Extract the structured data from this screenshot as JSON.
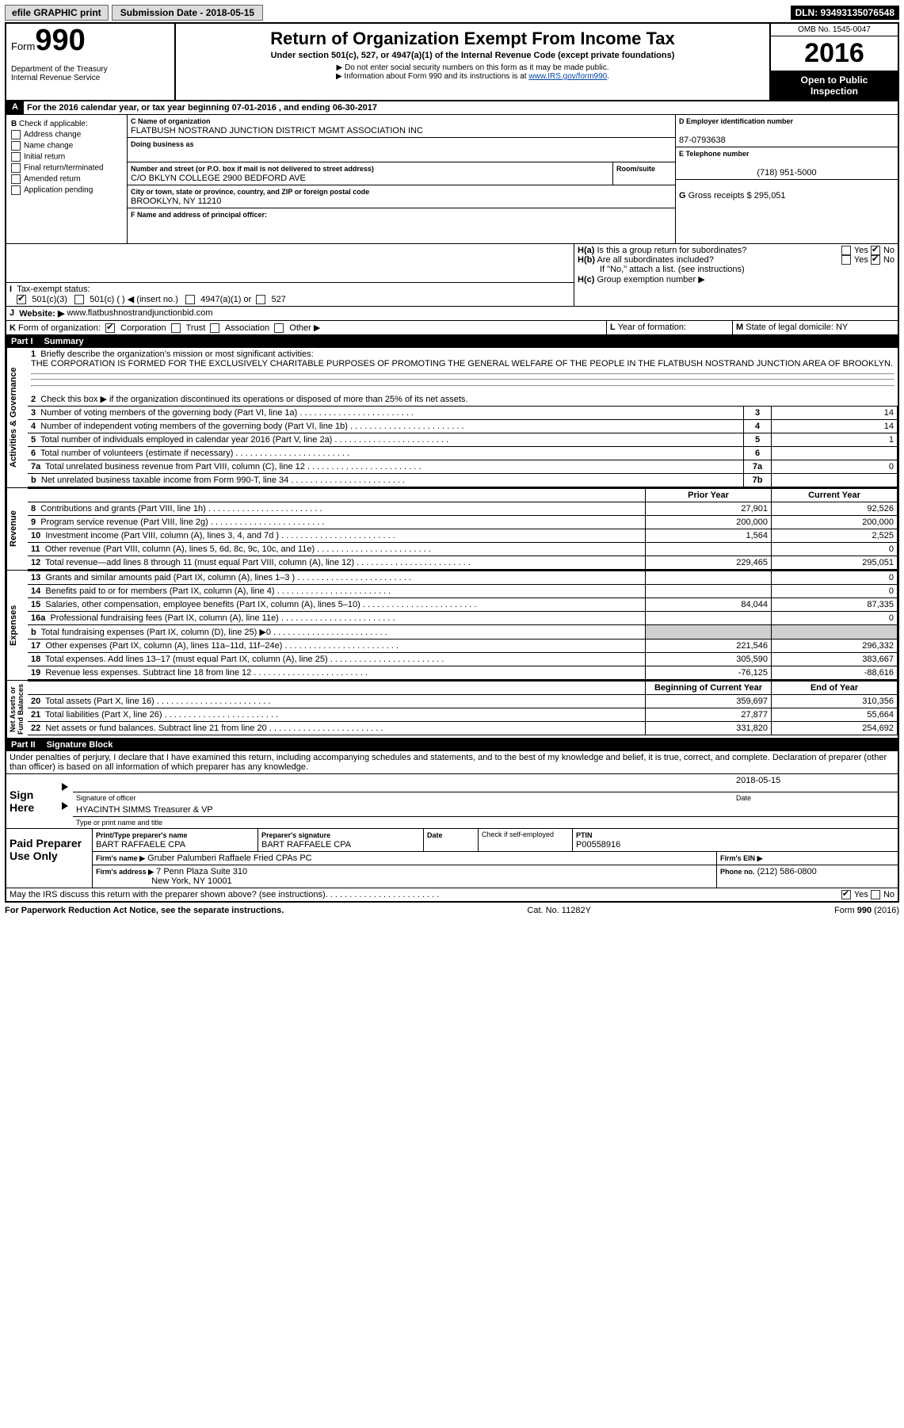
{
  "topbar": {
    "efile": "efile GRAPHIC print",
    "submission": "Submission Date - 2018-05-15",
    "dln": "DLN: 93493135076548"
  },
  "header": {
    "form_word": "Form",
    "form_num": "990",
    "dept1": "Department of the Treasury",
    "dept2": "Internal Revenue Service",
    "title": "Return of Organization Exempt From Income Tax",
    "subtitle": "Under section 501(c), 527, or 4947(a)(1) of the Internal Revenue Code (except private foundations)",
    "note1": "▶ Do not enter social security numbers on this form as it may be made public.",
    "note2_a": "▶ Information about Form 990 and its instructions is at ",
    "note2_link": "www.IRS.gov/form990",
    "omb": "OMB No. 1545-0047",
    "year": "2016",
    "open1": "Open to Public",
    "open2": "Inspection"
  },
  "line_a": "For the 2016 calendar year, or tax year beginning 07-01-2016   , and ending 06-30-2017",
  "b": {
    "label": "Check if applicable:",
    "opts": [
      "Address change",
      "Name change",
      "Initial return",
      "Final return/terminated",
      "Amended return",
      "Application pending"
    ]
  },
  "c": {
    "name_label": "Name of organization",
    "name": "FLATBUSH NOSTRAND JUNCTION DISTRICT MGMT ASSOCIATION INC",
    "dba_label": "Doing business as",
    "addr_label": "Number and street (or P.O. box if mail is not delivered to street address)",
    "room_label": "Room/suite",
    "addr": "C/O BKLYN COLLEGE 2900 BEDFORD AVE",
    "city_label": "City or town, state or province, country, and ZIP or foreign postal code",
    "city": "BROOKLYN, NY  11210",
    "f_label": "Name and address of principal officer:"
  },
  "d": {
    "label": "Employer identification number",
    "val": "87-0793638"
  },
  "e": {
    "label": "Telephone number",
    "val": "(718) 951-5000"
  },
  "g": {
    "label": "Gross receipts $",
    "val": "295,051"
  },
  "h": {
    "a": "Is this a group return for subordinates?",
    "b": "Are all subordinates included?",
    "b_note": "If \"No,\" attach a list. (see instructions)",
    "c": "Group exemption number ▶",
    "yes": "Yes",
    "no": "No"
  },
  "i": {
    "label": "Tax-exempt status:",
    "o1": "501(c)(3)",
    "o2": "501(c) (   ) ◀ (insert no.)",
    "o3": "4947(a)(1) or",
    "o4": "527"
  },
  "j": {
    "label": "Website: ▶",
    "val": "www.flatbushnostrandjunctionbid.com"
  },
  "k": {
    "label": "Form of organization:",
    "opts": [
      "Corporation",
      "Trust",
      "Association",
      "Other ▶"
    ]
  },
  "l": {
    "label": "Year of formation:"
  },
  "m": {
    "label": "State of legal domicile:",
    "val": "NY"
  },
  "part1": {
    "title": "Part I",
    "name": "Summary",
    "l1": "Briefly describe the organization's mission or most significant activities:",
    "mission": "THE CORPORATION IS FORMED FOR THE EXCLUSIVELY CHARITABLE PURPOSES OF PROMOTING THE GENERAL WELFARE OF THE PEOPLE IN THE FLATBUSH NOSTRAND JUNCTION AREA OF BROOKLYN.",
    "l2": "Check this box ▶        if the organization discontinued its operations or disposed of more than 25% of its net assets.",
    "lines_gov": [
      {
        "n": "3",
        "t": "Number of voting members of the governing body (Part VI, line 1a)",
        "box": "3",
        "v": "14"
      },
      {
        "n": "4",
        "t": "Number of independent voting members of the governing body (Part VI, line 1b)",
        "box": "4",
        "v": "14"
      },
      {
        "n": "5",
        "t": "Total number of individuals employed in calendar year 2016 (Part V, line 2a)",
        "box": "5",
        "v": "1"
      },
      {
        "n": "6",
        "t": "Total number of volunteers (estimate if necessary)",
        "box": "6",
        "v": ""
      },
      {
        "n": "7a",
        "t": "Total unrelated business revenue from Part VIII, column (C), line 12",
        "box": "7a",
        "v": "0"
      },
      {
        "n": "b",
        "t": "Net unrelated business taxable income from Form 990-T, line 34",
        "box": "7b",
        "v": ""
      }
    ],
    "col_prior": "Prior Year",
    "col_curr": "Current Year",
    "revenue": [
      {
        "n": "8",
        "t": "Contributions and grants (Part VIII, line 1h)",
        "p": "27,901",
        "c": "92,526"
      },
      {
        "n": "9",
        "t": "Program service revenue (Part VIII, line 2g)",
        "p": "200,000",
        "c": "200,000"
      },
      {
        "n": "10",
        "t": "Investment income (Part VIII, column (A), lines 3, 4, and 7d )",
        "p": "1,564",
        "c": "2,525"
      },
      {
        "n": "11",
        "t": "Other revenue (Part VIII, column (A), lines 5, 6d, 8c, 9c, 10c, and 11e)",
        "p": "",
        "c": "0"
      },
      {
        "n": "12",
        "t": "Total revenue—add lines 8 through 11 (must equal Part VIII, column (A), line 12)",
        "p": "229,465",
        "c": "295,051"
      }
    ],
    "expenses": [
      {
        "n": "13",
        "t": "Grants and similar amounts paid (Part IX, column (A), lines 1–3 )",
        "p": "",
        "c": "0"
      },
      {
        "n": "14",
        "t": "Benefits paid to or for members (Part IX, column (A), line 4)",
        "p": "",
        "c": "0"
      },
      {
        "n": "15",
        "t": "Salaries, other compensation, employee benefits (Part IX, column (A), lines 5–10)",
        "p": "84,044",
        "c": "87,335"
      },
      {
        "n": "16a",
        "t": "Professional fundraising fees (Part IX, column (A), line 11e)",
        "p": "",
        "c": "0"
      },
      {
        "n": "b",
        "t": "Total fundraising expenses (Part IX, column (D), line 25) ▶0",
        "p": "GREY",
        "c": "GREY"
      },
      {
        "n": "17",
        "t": "Other expenses (Part IX, column (A), lines 11a–11d, 11f–24e)",
        "p": "221,546",
        "c": "296,332"
      },
      {
        "n": "18",
        "t": "Total expenses. Add lines 13–17 (must equal Part IX, column (A), line 25)",
        "p": "305,590",
        "c": "383,667"
      },
      {
        "n": "19",
        "t": "Revenue less expenses. Subtract line 18 from line 12",
        "p": "-76,125",
        "c": "-88,616"
      }
    ],
    "col_begin": "Beginning of Current Year",
    "col_end": "End of Year",
    "net": [
      {
        "n": "20",
        "t": "Total assets (Part X, line 16)",
        "p": "359,697",
        "c": "310,356"
      },
      {
        "n": "21",
        "t": "Total liabilities (Part X, line 26)",
        "p": "27,877",
        "c": "55,664"
      },
      {
        "n": "22",
        "t": "Net assets or fund balances. Subtract line 21 from line 20",
        "p": "331,820",
        "c": "254,692"
      }
    ],
    "side_labels": {
      "gov": "Activities & Governance",
      "rev": "Revenue",
      "exp": "Expenses",
      "net": "Net Assets or\nFund Balances"
    }
  },
  "part2": {
    "title": "Part II",
    "name": "Signature Block",
    "decl": "Under penalties of perjury, I declare that I have examined this return, including accompanying schedules and statements, and to the best of my knowledge and belief, it is true, correct, and complete. Declaration of preparer (other than officer) is based on all information of which preparer has any knowledge.",
    "sign_here": "Sign Here",
    "sig_officer": "Signature of officer",
    "date_lbl": "Date",
    "date_val": "2018-05-15",
    "officer_name": "HYACINTH SIMMS Treasurer & VP",
    "type_name": "Type or print name and title",
    "paid": "Paid Preparer Use Only",
    "prep_name_lbl": "Print/Type preparer's name",
    "prep_name": "BART RAFFAELE CPA",
    "prep_sig_lbl": "Preparer's signature",
    "prep_sig": "BART RAFFAELE CPA",
    "date2": "Date",
    "check_self": "Check        if self-employed",
    "ptin_lbl": "PTIN",
    "ptin": "P00558916",
    "firm_name_lbl": "Firm's name     ▶",
    "firm_name": "Gruber Palumberi Raffaele Fried CPAs PC",
    "firm_ein": "Firm's EIN ▶",
    "firm_addr_lbl": "Firm's address ▶",
    "firm_addr1": "7 Penn Plaza Suite 310",
    "firm_addr2": "New York, NY  10001",
    "phone_lbl": "Phone no.",
    "phone": "(212) 586-0800",
    "irs_q": "May the IRS discuss this return with the preparer shown above? (see instructions)",
    "yes": "Yes",
    "no": "No"
  },
  "footer": {
    "left": "For Paperwork Reduction Act Notice, see the separate instructions.",
    "mid": "Cat. No. 11282Y",
    "right": "Form 990 (2016)"
  }
}
